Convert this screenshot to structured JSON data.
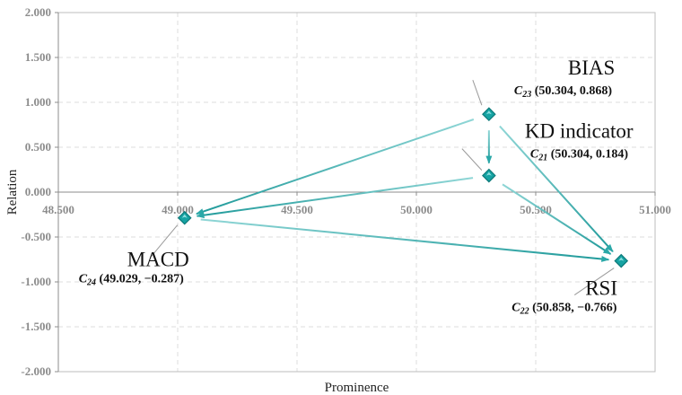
{
  "chart_data": {
    "type": "scatter",
    "xlabel": "Prominence",
    "ylabel": "Relation",
    "xlim": [
      48.5,
      51.0
    ],
    "ylim": [
      -2.0,
      2.0
    ],
    "x_ticks": [
      "48.500",
      "49.000",
      "49.500",
      "50.000",
      "50.500",
      "51.000"
    ],
    "y_ticks": [
      "2.000",
      "1.500",
      "1.000",
      "0.500",
      "0.000",
      "-0.500",
      "-1.000",
      "-1.500",
      "-2.000"
    ],
    "grid": true,
    "colors": {
      "marker": "#16a3a3",
      "marker_edge": "#0d7a7a",
      "arrow": "#2aa8a8",
      "grid": "#dcdcdc",
      "leader": "#9a9a9a"
    },
    "points": [
      {
        "id": "C21",
        "name": "KD indicator",
        "sym": "C",
        "sub": "21",
        "coords": "(50.304, 0.184)",
        "x": 50.304,
        "y": 0.184
      },
      {
        "id": "C22",
        "name": "RSI",
        "sym": "C",
        "sub": "22",
        "coords": "(50.858, −0.766)",
        "x": 50.858,
        "y": -0.766
      },
      {
        "id": "C23",
        "name": "BIAS",
        "sym": "C",
        "sub": "23",
        "coords": "(50.304, 0.868)",
        "x": 50.304,
        "y": 0.868
      },
      {
        "id": "C24",
        "name": "MACD",
        "sym": "C",
        "sub": "24",
        "coords": "(49.029, −0.287)",
        "x": 49.029,
        "y": -0.287
      }
    ],
    "arrows": [
      {
        "from": "C23",
        "to": "C21"
      },
      {
        "from": "C23",
        "to": "C24"
      },
      {
        "from": "C23",
        "to": "C22"
      },
      {
        "from": "C21",
        "to": "C24"
      },
      {
        "from": "C21",
        "to": "C22"
      },
      {
        "from": "C24",
        "to": "C22"
      }
    ]
  }
}
